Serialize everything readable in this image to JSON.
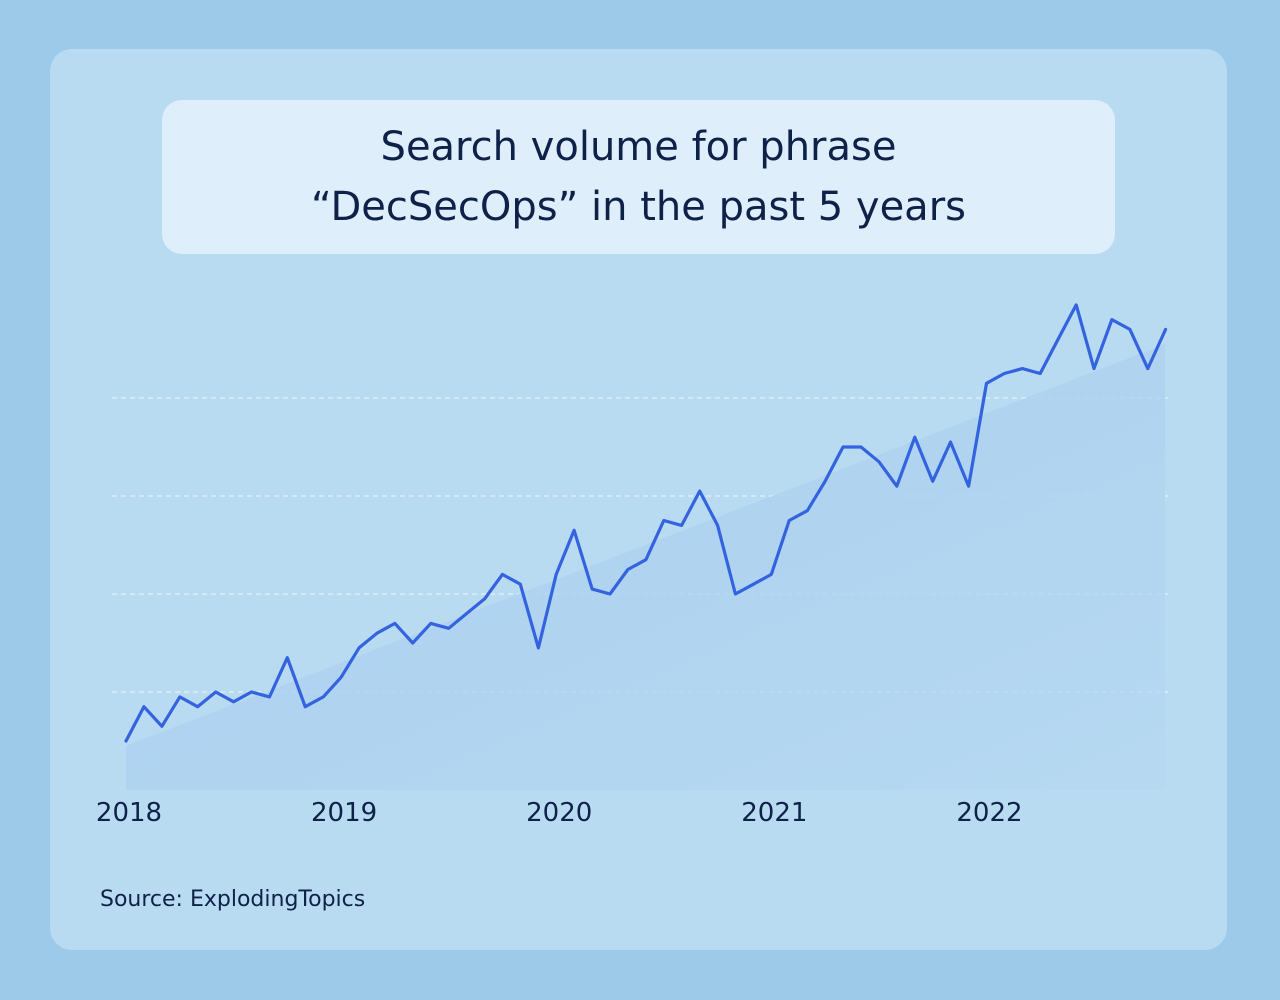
{
  "colors": {
    "background": "#9dcae9",
    "card": "#b9dbf1",
    "title_box": "#deeefb",
    "line": "#3463e0",
    "area": "#a4cdee",
    "grid": "#e4f1fb",
    "text": "#0e2148"
  },
  "title": {
    "line1": "Search volume for phrase",
    "line2": "“DecSecOps” in the past 5 years"
  },
  "source": "Source: ExplodingTopics",
  "chart_data": {
    "type": "line",
    "title": "Search volume for phrase “DecSecOps” in the past 5 years",
    "xlabel": "",
    "ylabel": "",
    "x_ticks": [
      "2018",
      "2019",
      "2020",
      "2021",
      "2022"
    ],
    "xlim": [
      2018.0,
      2022.83
    ],
    "ylim": [
      0,
      100
    ],
    "grid": true,
    "gridlines_y": [
      20,
      40,
      60,
      80
    ],
    "trend_area": {
      "start": 9,
      "end": 91
    },
    "series": [
      {
        "x": [
          2018.0,
          2018.083,
          2018.167,
          2018.25,
          2018.333,
          2018.417,
          2018.5,
          2018.583,
          2018.667,
          2018.75,
          2018.833,
          2018.917,
          2019.0,
          2019.083,
          2019.167,
          2019.25,
          2019.333,
          2019.417,
          2019.5,
          2019.583,
          2019.667,
          2019.75,
          2019.833,
          2019.917,
          2020.0,
          2020.083,
          2020.167,
          2020.25,
          2020.333,
          2020.417,
          2020.5,
          2020.583,
          2020.667,
          2020.75,
          2020.833,
          2020.917,
          2021.0,
          2021.083,
          2021.167,
          2021.25,
          2021.333,
          2021.417,
          2021.5,
          2021.583,
          2021.667,
          2021.75,
          2021.833,
          2021.917,
          2022.0,
          2022.083,
          2022.167,
          2022.25,
          2022.333,
          2022.417,
          2022.5,
          2022.583,
          2022.667,
          2022.75,
          2022.833
        ],
        "values": [
          10,
          17,
          13,
          19,
          17,
          20,
          18,
          20,
          19,
          27,
          17,
          19,
          23,
          29,
          32,
          34,
          30,
          34,
          33,
          36,
          39,
          44,
          42,
          29,
          44,
          53,
          41,
          40,
          45,
          47,
          55,
          54,
          61,
          54,
          40,
          42,
          44,
          55,
          57,
          63,
          70,
          70,
          67,
          62,
          72,
          63,
          71,
          62,
          83,
          85,
          86,
          85,
          92,
          99,
          86,
          96,
          94,
          86,
          94
        ]
      }
    ]
  }
}
